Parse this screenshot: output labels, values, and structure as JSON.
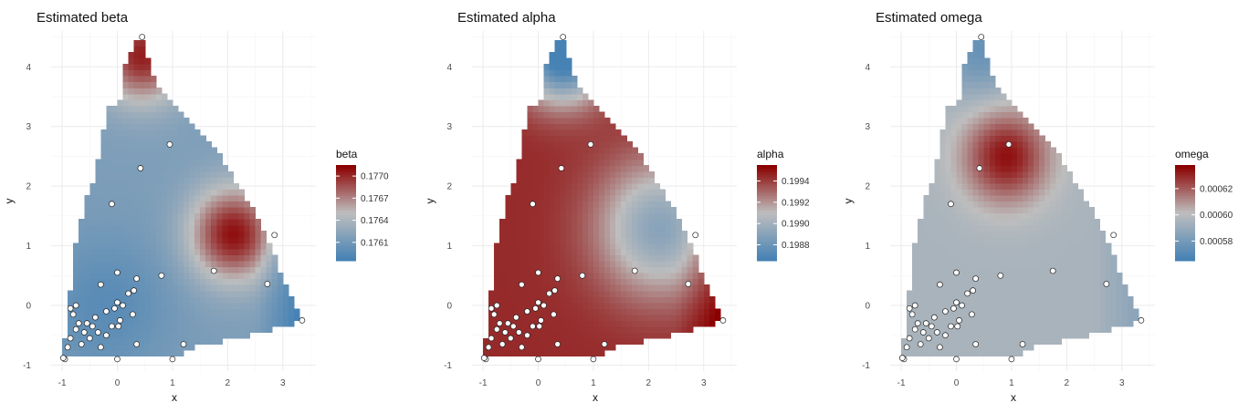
{
  "chart_data": [
    {
      "type": "heatmap",
      "title": "Estimated beta",
      "xlabel": "x",
      "ylabel": "y",
      "xlim": [
        -1.2,
        3.6
      ],
      "ylim": [
        -1.1,
        4.6
      ],
      "x_ticks": [
        -1,
        0,
        1,
        2,
        3
      ],
      "y_ticks": [
        -1,
        0,
        1,
        2,
        3,
        4
      ],
      "grid": true,
      "legend": {
        "title": "beta",
        "position": "right",
        "low_color": "#4682b4",
        "mid_color": "#bebebe",
        "high_color": "#8b0000",
        "range": [
          0.17585,
          0.17715
        ],
        "breaks": [
          0.1761,
          0.1764,
          0.1767,
          0.177
        ],
        "labels": [
          "0.1761",
          "0.1764",
          "0.1767",
          "0.1770"
        ]
      },
      "field_model": {
        "base": 0.17615,
        "hot_center": [
          2.1,
          1.2
        ],
        "hot_amp": 0.00095,
        "cold_center": [
          -0.2,
          0.0
        ],
        "cold_amp": -0.0002,
        "top_center": [
          0.45,
          4.2
        ],
        "top_amp": 0.0009,
        "east_slope": -0.0004
      }
    },
    {
      "type": "heatmap",
      "title": "Estimated alpha",
      "xlabel": "x",
      "ylabel": "y",
      "xlim": [
        -1.2,
        3.6
      ],
      "ylim": [
        -1.1,
        4.6
      ],
      "x_ticks": [
        -1,
        0,
        1,
        2,
        3
      ],
      "y_ticks": [
        -1,
        0,
        1,
        2,
        3,
        4
      ],
      "grid": true,
      "legend": {
        "title": "alpha",
        "position": "right",
        "low_color": "#4682b4",
        "mid_color": "#bebebe",
        "high_color": "#8b0000",
        "range": [
          0.19865,
          0.19955
        ],
        "breaks": [
          0.1988,
          0.199,
          0.1992,
          0.1994
        ],
        "labels": [
          "0.1988",
          "0.1990",
          "0.1992",
          "0.1994"
        ]
      },
      "field_model": {
        "base": 0.19945,
        "cold_center": [
          2.2,
          1.3
        ],
        "cold_amp": -0.00055,
        "top_center": [
          0.45,
          4.2
        ],
        "top_amp": -0.0009,
        "east_slope": 0.0002
      }
    },
    {
      "type": "heatmap",
      "title": "Estimated omega",
      "xlabel": "x",
      "ylabel": "y",
      "xlim": [
        -1.2,
        3.6
      ],
      "ylim": [
        -1.1,
        4.6
      ],
      "x_ticks": [
        -1,
        0,
        1,
        2,
        3
      ],
      "y_ticks": [
        -1,
        0,
        1,
        2,
        3,
        4
      ],
      "grid": true,
      "legend": {
        "title": "omega",
        "position": "right",
        "low_color": "#4682b4",
        "mid_color": "#bebebe",
        "high_color": "#8b0000",
        "range": [
          0.000565,
          0.000638
        ],
        "breaks": [
          0.00058,
          0.0006,
          0.00062
        ],
        "labels": [
          "0.00058",
          "0.00060",
          "0.00062"
        ]
      },
      "field_model": {
        "base": 0.000595,
        "hot_center": [
          0.9,
          2.5
        ],
        "hot_amp": 4e-05,
        "east_slope": -1.2e-05,
        "top_center": [
          0.45,
          4.3
        ],
        "top_amp": -2e-05
      }
    }
  ],
  "domain_polygon": [
    [
      -1.0,
      -0.9
    ],
    [
      -0.8,
      -0.85
    ],
    [
      1.2,
      -0.85
    ],
    [
      1.2,
      -0.75
    ],
    [
      2.2,
      -0.55
    ],
    [
      3.35,
      -0.25
    ],
    [
      3.05,
      0.35
    ],
    [
      2.6,
      1.4
    ],
    [
      2.2,
      2.0
    ],
    [
      1.8,
      2.6
    ],
    [
      1.4,
      3.0
    ],
    [
      1.0,
      3.35
    ],
    [
      0.7,
      3.7
    ],
    [
      0.6,
      4.0
    ],
    [
      0.5,
      4.35
    ],
    [
      0.45,
      4.5
    ],
    [
      0.3,
      4.4
    ],
    [
      0.2,
      4.2
    ],
    [
      0.1,
      3.85
    ],
    [
      0.1,
      3.5
    ],
    [
      -0.2,
      3.3
    ],
    [
      -0.3,
      2.7
    ],
    [
      -0.4,
      2.2
    ],
    [
      -0.6,
      1.7
    ],
    [
      -0.8,
      0.8
    ],
    [
      -0.85,
      0.2
    ],
    [
      -0.9,
      -0.3
    ]
  ],
  "sample_points": [
    [
      0.45,
      4.5
    ],
    [
      0.95,
      2.7
    ],
    [
      0.42,
      2.3
    ],
    [
      -0.1,
      1.7
    ],
    [
      2.85,
      1.18
    ],
    [
      1.75,
      0.58
    ],
    [
      2.72,
      0.36
    ],
    [
      3.35,
      -0.25
    ],
    [
      0.8,
      0.5
    ],
    [
      0.0,
      0.55
    ],
    [
      0.35,
      0.45
    ],
    [
      -0.3,
      0.35
    ],
    [
      0.3,
      0.25
    ],
    [
      0.2,
      0.2
    ],
    [
      0.0,
      0.05
    ],
    [
      0.1,
      0.0
    ],
    [
      -0.05,
      -0.05
    ],
    [
      -0.2,
      -0.1
    ],
    [
      0.28,
      -0.15
    ],
    [
      0.05,
      -0.25
    ],
    [
      -0.4,
      -0.2
    ],
    [
      -0.55,
      -0.3
    ],
    [
      -0.45,
      -0.35
    ],
    [
      -0.35,
      -0.45
    ],
    [
      -0.7,
      -0.3
    ],
    [
      -0.6,
      -0.45
    ],
    [
      -0.5,
      -0.55
    ],
    [
      -0.85,
      -0.05
    ],
    [
      -0.8,
      -0.15
    ],
    [
      -0.75,
      -0.4
    ],
    [
      -0.85,
      -0.55
    ],
    [
      -0.9,
      -0.7
    ],
    [
      -0.65,
      -0.65
    ],
    [
      -0.3,
      -0.7
    ],
    [
      0.35,
      -0.65
    ],
    [
      1.2,
      -0.65
    ],
    [
      -0.95,
      -0.9
    ],
    [
      -0.98,
      -0.88
    ],
    [
      0.0,
      -0.9
    ],
    [
      1.0,
      -0.9
    ],
    [
      -0.1,
      -0.35
    ],
    [
      -0.2,
      -0.5
    ],
    [
      -0.75,
      0.0
    ],
    [
      0.02,
      -0.35
    ]
  ]
}
